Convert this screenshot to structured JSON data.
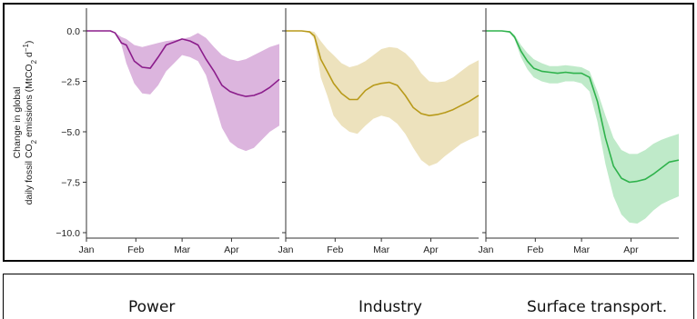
{
  "chart_data": [
    {
      "type": "area",
      "panel": "Power",
      "ylabel_line1": "Change in global",
      "ylabel_line2_parts": [
        "daily fossil CO",
        "2",
        " emissions (MtCO",
        "2",
        " d",
        "−1",
        ")"
      ],
      "ylim": [
        -10.0,
        0.5
      ],
      "yticks": [
        "0.0",
        "−2.5",
        "−5.0",
        "−7.5",
        "−10.0"
      ],
      "ytick_values": [
        0.0,
        -2.5,
        -5.0,
        -7.5,
        -10.0
      ],
      "xticks": [
        "Jan",
        "Feb",
        "Mar",
        "Apr"
      ],
      "xtick_days": [
        0,
        31,
        60,
        91
      ],
      "xlim_days": [
        0,
        121
      ],
      "color": "#8b1d8b",
      "band_color": "#dcb5de",
      "series": [
        {
          "x_days": [
            0,
            10,
            15,
            18,
            22,
            25,
            30,
            35,
            40,
            45,
            50,
            55,
            60,
            65,
            70,
            75,
            80,
            85,
            90,
            95,
            100,
            105,
            110,
            115,
            121
          ],
          "mean": [
            0,
            0,
            0,
            -0.1,
            -0.6,
            -0.7,
            -1.5,
            -1.8,
            -1.85,
            -1.3,
            -0.7,
            -0.55,
            -0.4,
            -0.5,
            -0.7,
            -1.4,
            -2.0,
            -2.7,
            -3.0,
            -3.15,
            -3.25,
            -3.2,
            -3.05,
            -2.8,
            -2.4
          ],
          "upper": [
            0,
            0,
            0,
            -0.1,
            -0.3,
            -0.4,
            -0.7,
            -0.8,
            -0.7,
            -0.6,
            -0.5,
            -0.45,
            -0.4,
            -0.3,
            -0.1,
            -0.35,
            -0.8,
            -1.2,
            -1.4,
            -1.5,
            -1.4,
            -1.2,
            -1.0,
            -0.8,
            -0.65
          ],
          "lower": [
            0,
            0,
            0,
            -0.1,
            -0.7,
            -1.6,
            -2.6,
            -3.1,
            -3.15,
            -2.7,
            -2.0,
            -1.6,
            -1.2,
            -1.3,
            -1.5,
            -2.2,
            -3.5,
            -4.8,
            -5.5,
            -5.8,
            -5.95,
            -5.8,
            -5.4,
            -5.0,
            -4.7
          ]
        }
      ]
    },
    {
      "type": "area",
      "panel": "Industry",
      "ylim": [
        -10.0,
        0.5
      ],
      "xticks": [
        "Jan",
        "Feb",
        "Mar",
        "Apr"
      ],
      "xtick_days": [
        0,
        31,
        60,
        91
      ],
      "xlim_days": [
        0,
        121
      ],
      "color": "#b89a1a",
      "band_color": "#ede2bd",
      "series": [
        {
          "x_days": [
            0,
            10,
            15,
            18,
            22,
            26,
            30,
            35,
            40,
            45,
            50,
            55,
            60,
            65,
            70,
            75,
            80,
            85,
            90,
            95,
            100,
            105,
            110,
            115,
            121
          ],
          "mean": [
            0,
            0,
            -0.05,
            -0.25,
            -1.4,
            -2.0,
            -2.6,
            -3.1,
            -3.4,
            -3.4,
            -2.95,
            -2.7,
            -2.6,
            -2.55,
            -2.7,
            -3.2,
            -3.8,
            -4.1,
            -4.2,
            -4.15,
            -4.05,
            -3.9,
            -3.7,
            -3.5,
            -3.2
          ],
          "upper": [
            0,
            0,
            0,
            -0.05,
            -0.5,
            -0.9,
            -1.2,
            -1.6,
            -1.8,
            -1.7,
            -1.5,
            -1.2,
            -0.9,
            -0.8,
            -0.85,
            -1.1,
            -1.5,
            -2.1,
            -2.5,
            -2.55,
            -2.5,
            -2.3,
            -2.0,
            -1.7,
            -1.45
          ],
          "lower": [
            0,
            0,
            -0.1,
            -0.4,
            -2.3,
            -3.2,
            -4.2,
            -4.7,
            -5.0,
            -5.1,
            -4.7,
            -4.35,
            -4.2,
            -4.3,
            -4.6,
            -5.1,
            -5.8,
            -6.4,
            -6.7,
            -6.55,
            -6.2,
            -5.9,
            -5.6,
            -5.4,
            -5.2
          ]
        }
      ]
    },
    {
      "type": "area",
      "panel": "Surface transport",
      "ylim": [
        -10.0,
        0.5
      ],
      "xticks": [
        "Jan",
        "Feb",
        "Mar",
        "Apr"
      ],
      "xtick_days": [
        0,
        31,
        60,
        91
      ],
      "xlim_days": [
        0,
        121
      ],
      "color": "#2fb24c",
      "band_color": "#bfeac9",
      "series": [
        {
          "x_days": [
            0,
            10,
            15,
            18,
            22,
            26,
            30,
            35,
            40,
            45,
            50,
            55,
            60,
            65,
            70,
            75,
            80,
            85,
            90,
            95,
            100,
            105,
            110,
            115,
            121
          ],
          "mean": [
            0,
            0,
            -0.05,
            -0.3,
            -1.0,
            -1.5,
            -1.85,
            -2.0,
            -2.05,
            -2.1,
            -2.05,
            -2.1,
            -2.1,
            -2.3,
            -3.5,
            -5.3,
            -6.7,
            -7.3,
            -7.5,
            -7.45,
            -7.35,
            -7.1,
            -6.8,
            -6.5,
            -6.4
          ],
          "upper": [
            0,
            0,
            0,
            -0.2,
            -0.7,
            -1.1,
            -1.4,
            -1.6,
            -1.75,
            -1.75,
            -1.7,
            -1.75,
            -1.8,
            -2.0,
            -3.0,
            -4.2,
            -5.3,
            -5.9,
            -6.1,
            -6.1,
            -5.9,
            -5.6,
            -5.4,
            -5.25,
            -5.1
          ],
          "lower": [
            0,
            0,
            -0.1,
            -0.4,
            -1.3,
            -1.9,
            -2.3,
            -2.5,
            -2.6,
            -2.6,
            -2.5,
            -2.5,
            -2.6,
            -3.0,
            -4.5,
            -6.6,
            -8.2,
            -9.1,
            -9.5,
            -9.55,
            -9.3,
            -8.9,
            -8.6,
            -8.4,
            -8.2
          ]
        }
      ]
    }
  ],
  "captions": [
    "Power",
    "Industry",
    "Surface transport."
  ]
}
